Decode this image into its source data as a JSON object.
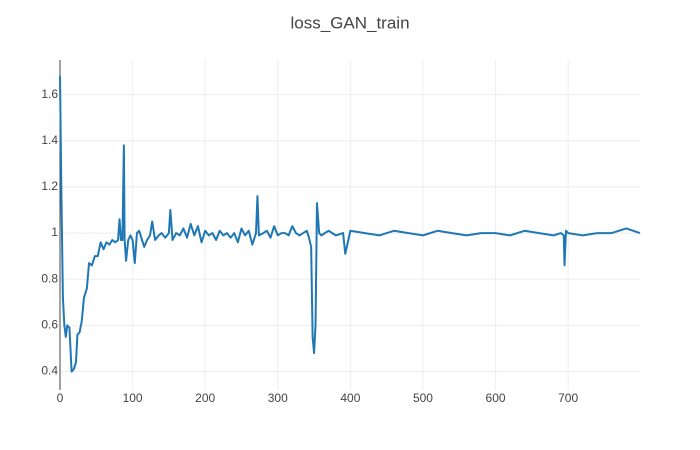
{
  "chart_data": {
    "type": "line",
    "title": "loss_GAN_train",
    "xlim": [
      0,
      799
    ],
    "ylim": [
      0.32,
      1.75
    ],
    "xticks": [
      0,
      100,
      200,
      300,
      400,
      500,
      600,
      700
    ],
    "yticks": [
      0.4,
      0.6,
      0.8,
      1,
      1.2,
      1.4,
      1.6
    ],
    "grid": true,
    "x": [
      0,
      2,
      4,
      6,
      8,
      10,
      13,
      16,
      19,
      22,
      24,
      27,
      30,
      33,
      37,
      40,
      44,
      48,
      52,
      56,
      60,
      64,
      68,
      72,
      76,
      80,
      82,
      84,
      86,
      88,
      89,
      91,
      94,
      97,
      100,
      103,
      106,
      109,
      112,
      116,
      120,
      124,
      127,
      131,
      136,
      140,
      145,
      150,
      152,
      155,
      160,
      165,
      170,
      175,
      180,
      185,
      190,
      195,
      200,
      205,
      210,
      215,
      220,
      225,
      230,
      235,
      240,
      245,
      250,
      255,
      260,
      265,
      270,
      272,
      274,
      280,
      285,
      290,
      295,
      300,
      305,
      310,
      315,
      320,
      325,
      330,
      335,
      340,
      343,
      346,
      348,
      350,
      352,
      354,
      357,
      360,
      370,
      380,
      390,
      393,
      400,
      420,
      440,
      460,
      480,
      500,
      520,
      540,
      560,
      580,
      600,
      620,
      640,
      660,
      680,
      690,
      694,
      695,
      697,
      700,
      720,
      740,
      760,
      780,
      799
    ],
    "series": [
      {
        "color": "#1f77b4",
        "values": [
          1.68,
          1.15,
          0.72,
          0.6,
          0.55,
          0.6,
          0.59,
          0.4,
          0.41,
          0.44,
          0.56,
          0.57,
          0.62,
          0.72,
          0.76,
          0.87,
          0.86,
          0.9,
          0.9,
          0.96,
          0.93,
          0.96,
          0.95,
          0.97,
          0.96,
          0.97,
          1.06,
          0.97,
          0.97,
          1.38,
          0.97,
          0.88,
          0.97,
          0.99,
          0.97,
          0.87,
          1.0,
          1.01,
          0.98,
          0.94,
          0.97,
          0.99,
          1.05,
          0.97,
          0.99,
          1.0,
          0.98,
          1.0,
          1.1,
          0.97,
          1.0,
          0.99,
          1.02,
          0.98,
          1.04,
          0.99,
          1.03,
          0.96,
          1.01,
          0.99,
          1.0,
          0.97,
          1.01,
          0.99,
          1.0,
          0.98,
          1.0,
          0.96,
          1.02,
          0.99,
          1.01,
          0.95,
          1.0,
          1.16,
          0.99,
          1.0,
          1.01,
          0.98,
          1.03,
          0.99,
          1.0,
          1.0,
          0.99,
          1.03,
          1.0,
          0.99,
          1.0,
          1.01,
          0.98,
          0.94,
          0.55,
          0.48,
          0.6,
          1.13,
          1.0,
          0.99,
          1.01,
          0.99,
          1.0,
          0.91,
          1.01,
          1.0,
          0.99,
          1.01,
          1.0,
          0.99,
          1.01,
          1.0,
          0.99,
          1.0,
          1.0,
          0.99,
          1.01,
          1.0,
          0.99,
          1.0,
          0.99,
          0.86,
          1.01,
          1.0,
          0.99,
          1.0,
          1.0,
          1.02,
          1.0
        ]
      }
    ]
  }
}
